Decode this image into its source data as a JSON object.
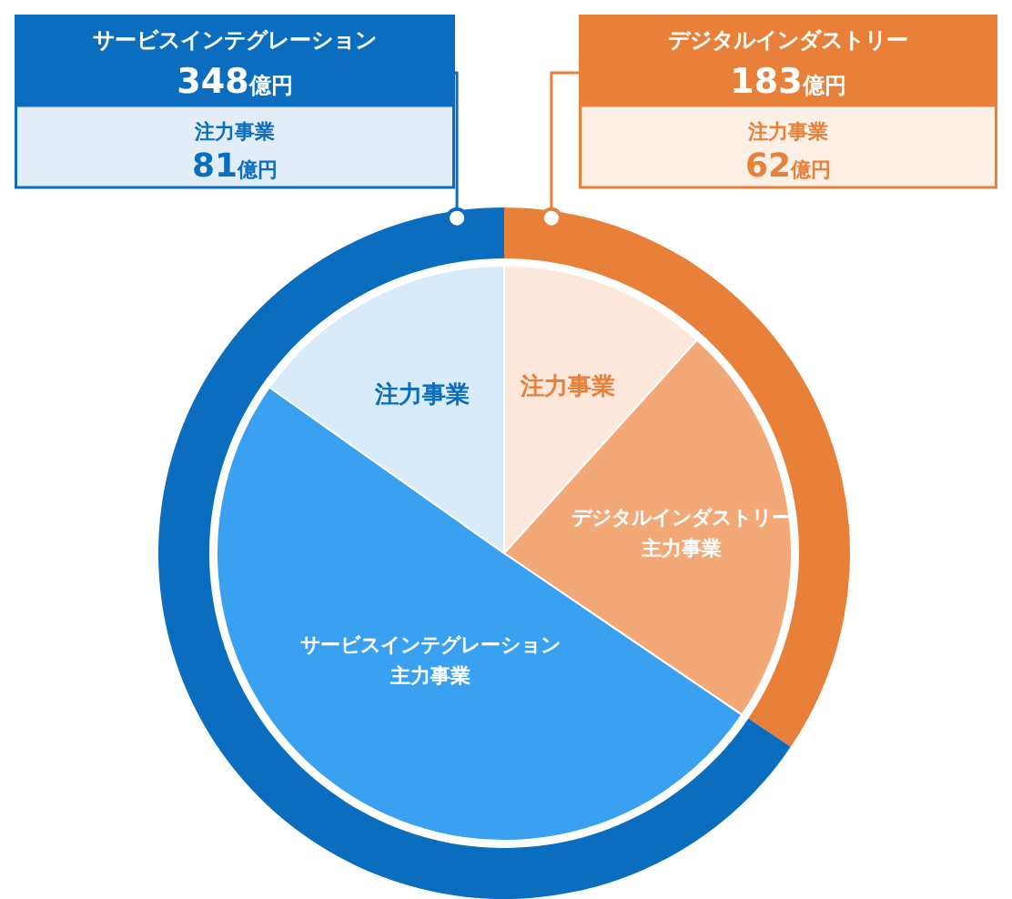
{
  "chart_data": [
    {
      "type": "donut",
      "categories": [
        "デジタルインダストリー",
        "サービスインテグレーション"
      ],
      "values": [
        183,
        348
      ],
      "colors": [
        "#e8803a",
        "#0b6dbd"
      ],
      "value_labels": [
        "183億円",
        "348億円"
      ],
      "annotations": [
        "注力事業",
        "62億円",
        "注力事業",
        "81億円"
      ]
    },
    {
      "type": "pie",
      "categories": [
        "注力事業",
        "デジタルインダストリー主力事業",
        "サービスインテグレーション主力事業",
        "注力事業"
      ],
      "values": [
        11.7,
        22.8,
        50.3,
        15.2
      ],
      "colors": [
        "#fde7da",
        "#f2a877",
        "#3aa1f1",
        "#d7ebfb"
      ]
    }
  ]
}
